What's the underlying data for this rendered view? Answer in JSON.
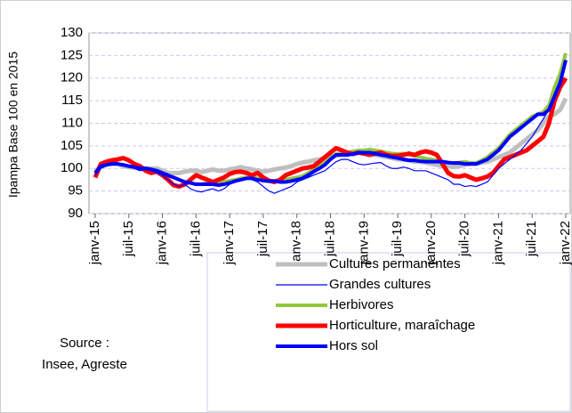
{
  "chart_data": {
    "type": "line",
    "y_label": "Ipampa  Base 100 en 2015",
    "source": [
      "Source :",
      "Insee, Agreste"
    ],
    "categories": [
      "janv-15",
      null,
      null,
      null,
      null,
      null,
      "juil-15",
      null,
      null,
      null,
      null,
      null,
      "janv-16",
      null,
      null,
      null,
      null,
      null,
      "juil-16",
      null,
      null,
      null,
      null,
      null,
      "janv-17",
      null,
      null,
      null,
      null,
      null,
      "juil-17",
      null,
      null,
      null,
      null,
      null,
      "janv-18",
      null,
      null,
      null,
      null,
      null,
      "juil-18",
      null,
      null,
      null,
      null,
      null,
      "janv-19",
      null,
      null,
      null,
      null,
      null,
      "juil-19",
      null,
      null,
      null,
      null,
      null,
      "janv-20",
      null,
      null,
      null,
      null,
      null,
      "juil-20",
      null,
      null,
      null,
      null,
      null,
      "janv-21",
      null,
      null,
      null,
      null,
      null,
      "juil-21",
      null,
      null,
      null,
      null,
      null,
      "janv-22"
    ],
    "ylim": [
      90,
      130
    ],
    "yticks": [
      90,
      95,
      100,
      105,
      110,
      115,
      120,
      125,
      130
    ],
    "grid": true,
    "series": [
      {
        "name": "Cultures permanentes",
        "color": "#bfbfbf",
        "width": 5,
        "values": [
          99.5,
          100.5,
          101,
          101,
          101,
          100.5,
          100.3,
          100.2,
          100,
          100,
          100,
          100,
          99.5,
          99,
          99,
          99,
          99.3,
          99.5,
          99.5,
          99.2,
          99.5,
          99.8,
          99.5,
          99.5,
          99.8,
          100,
          100.3,
          100,
          99.8,
          99.5,
          99.3,
          99.5,
          99.8,
          100,
          100.2,
          100.5,
          101,
          101.3,
          101.5,
          101.8,
          102,
          102.3,
          102.5,
          102.8,
          103,
          103.3,
          103.3,
          103.5,
          103.5,
          103.3,
          103,
          102.8,
          102.5,
          102.3,
          102,
          102,
          101.8,
          101.5,
          101.5,
          101.3,
          101,
          100.8,
          100.5,
          100.5,
          100.3,
          100.5,
          100.8,
          101,
          101,
          101.3,
          101.5,
          102,
          102.5,
          103,
          103.5,
          104.5,
          105.5,
          106.5,
          107.5,
          108.5,
          110,
          111.5,
          112,
          113,
          115.5
        ]
      },
      {
        "name": "Grandes cultures",
        "color": "#0000ff",
        "width": 1.2,
        "values": [
          98.5,
          100,
          100.5,
          100.8,
          101,
          100.8,
          100.5,
          100,
          99.5,
          99.8,
          99.5,
          99,
          98.5,
          97.5,
          96.5,
          96,
          96.5,
          95.5,
          95,
          94.8,
          95.2,
          95.5,
          95,
          95.5,
          96.5,
          97,
          97.5,
          97.8,
          97.5,
          97,
          96,
          95,
          94.5,
          95,
          95.5,
          96,
          97,
          97.5,
          98,
          98.5,
          99,
          99.5,
          100.5,
          101.5,
          102,
          102,
          101.5,
          101,
          100.8,
          101,
          101.2,
          101.3,
          100.5,
          100,
          100,
          100.3,
          100,
          99.5,
          99.5,
          99.5,
          99,
          98.5,
          98,
          97.5,
          96.5,
          96.5,
          96,
          96.2,
          96,
          96.5,
          97,
          98.5,
          100,
          101,
          102,
          103,
          104,
          105.5,
          107,
          109,
          111,
          113,
          116,
          119,
          124
        ]
      },
      {
        "name": "Herbivores",
        "color": "#92c83e",
        "width": 4,
        "values": [
          99,
          100.5,
          100.8,
          101,
          101,
          100.8,
          100.5,
          100.3,
          100,
          100,
          99.8,
          99.5,
          99,
          98.5,
          98,
          97.5,
          97,
          96.8,
          96.5,
          96.5,
          96.8,
          97,
          96.8,
          97,
          97.3,
          97.5,
          97.8,
          98,
          98,
          97.8,
          97.5,
          97.3,
          97.3,
          97.3,
          97.5,
          97.8,
          98,
          98.3,
          99,
          99.8,
          100.5,
          101.3,
          102.3,
          103.2,
          103.3,
          103.5,
          103.8,
          104,
          104,
          104.2,
          104,
          103.8,
          103.5,
          103.3,
          103.2,
          103.3,
          103,
          102.8,
          102.5,
          102.2,
          102,
          101.8,
          101.5,
          101.3,
          101.2,
          101.3,
          101.5,
          101.2,
          101.2,
          101.8,
          102.5,
          103.5,
          104.5,
          106,
          107.5,
          108.5,
          109.5,
          110.5,
          111.5,
          112,
          112.5,
          114,
          118,
          121,
          125.5
        ]
      },
      {
        "name": "Horticulture, maraîchage",
        "color": "#ff0000",
        "width": 5,
        "values": [
          98,
          101,
          101.5,
          101.8,
          102,
          102.3,
          101.8,
          101,
          100.5,
          99.5,
          99,
          99.3,
          98.5,
          97.5,
          96.3,
          96,
          96.5,
          97.5,
          98.5,
          98,
          97.5,
          97,
          97.5,
          98,
          98.8,
          99.2,
          99.3,
          99,
          98.5,
          99,
          98,
          97.3,
          97,
          97.5,
          98.5,
          99,
          99.5,
          100,
          100.2,
          100.5,
          101.5,
          102.5,
          103.5,
          104.5,
          104,
          103.5,
          103.2,
          103.5,
          103.3,
          103,
          103.3,
          103.5,
          103,
          102.8,
          102.8,
          103,
          103.3,
          103,
          103.5,
          103.8,
          103.5,
          103,
          101,
          99,
          98.3,
          98.2,
          98.5,
          98,
          97.5,
          97.8,
          98.2,
          99,
          100.5,
          102,
          102.5,
          103,
          103.5,
          104,
          105,
          106,
          107,
          110,
          115,
          118,
          120
        ]
      },
      {
        "name": "Hors sol",
        "color": "#0000ff",
        "width": 4,
        "values": [
          99,
          100.5,
          100.8,
          101,
          101,
          100.8,
          100.5,
          100.3,
          100,
          100,
          99.8,
          99.5,
          99,
          98.5,
          98,
          97.5,
          97,
          96.8,
          96.5,
          96.5,
          96.5,
          96.5,
          96.3,
          96.5,
          96.8,
          97.2,
          97.5,
          97.8,
          97.8,
          97.5,
          97.3,
          97.2,
          97.2,
          97,
          97,
          97.2,
          97.5,
          97.8,
          98.5,
          99.3,
          100,
          100.8,
          102,
          103,
          103,
          103,
          103.2,
          103.5,
          103.5,
          103.5,
          103.3,
          103,
          102.8,
          102.5,
          102.3,
          102,
          101.8,
          101.8,
          101.6,
          101.5,
          101.5,
          101.5,
          101.5,
          101.3,
          101.2,
          101.2,
          101,
          101,
          101,
          101.5,
          102,
          103,
          104,
          105.5,
          107,
          108,
          109,
          110,
          111,
          112,
          112,
          113,
          116,
          119,
          124
        ]
      }
    ],
    "legend_order": [
      0,
      1,
      2,
      3,
      4
    ]
  }
}
